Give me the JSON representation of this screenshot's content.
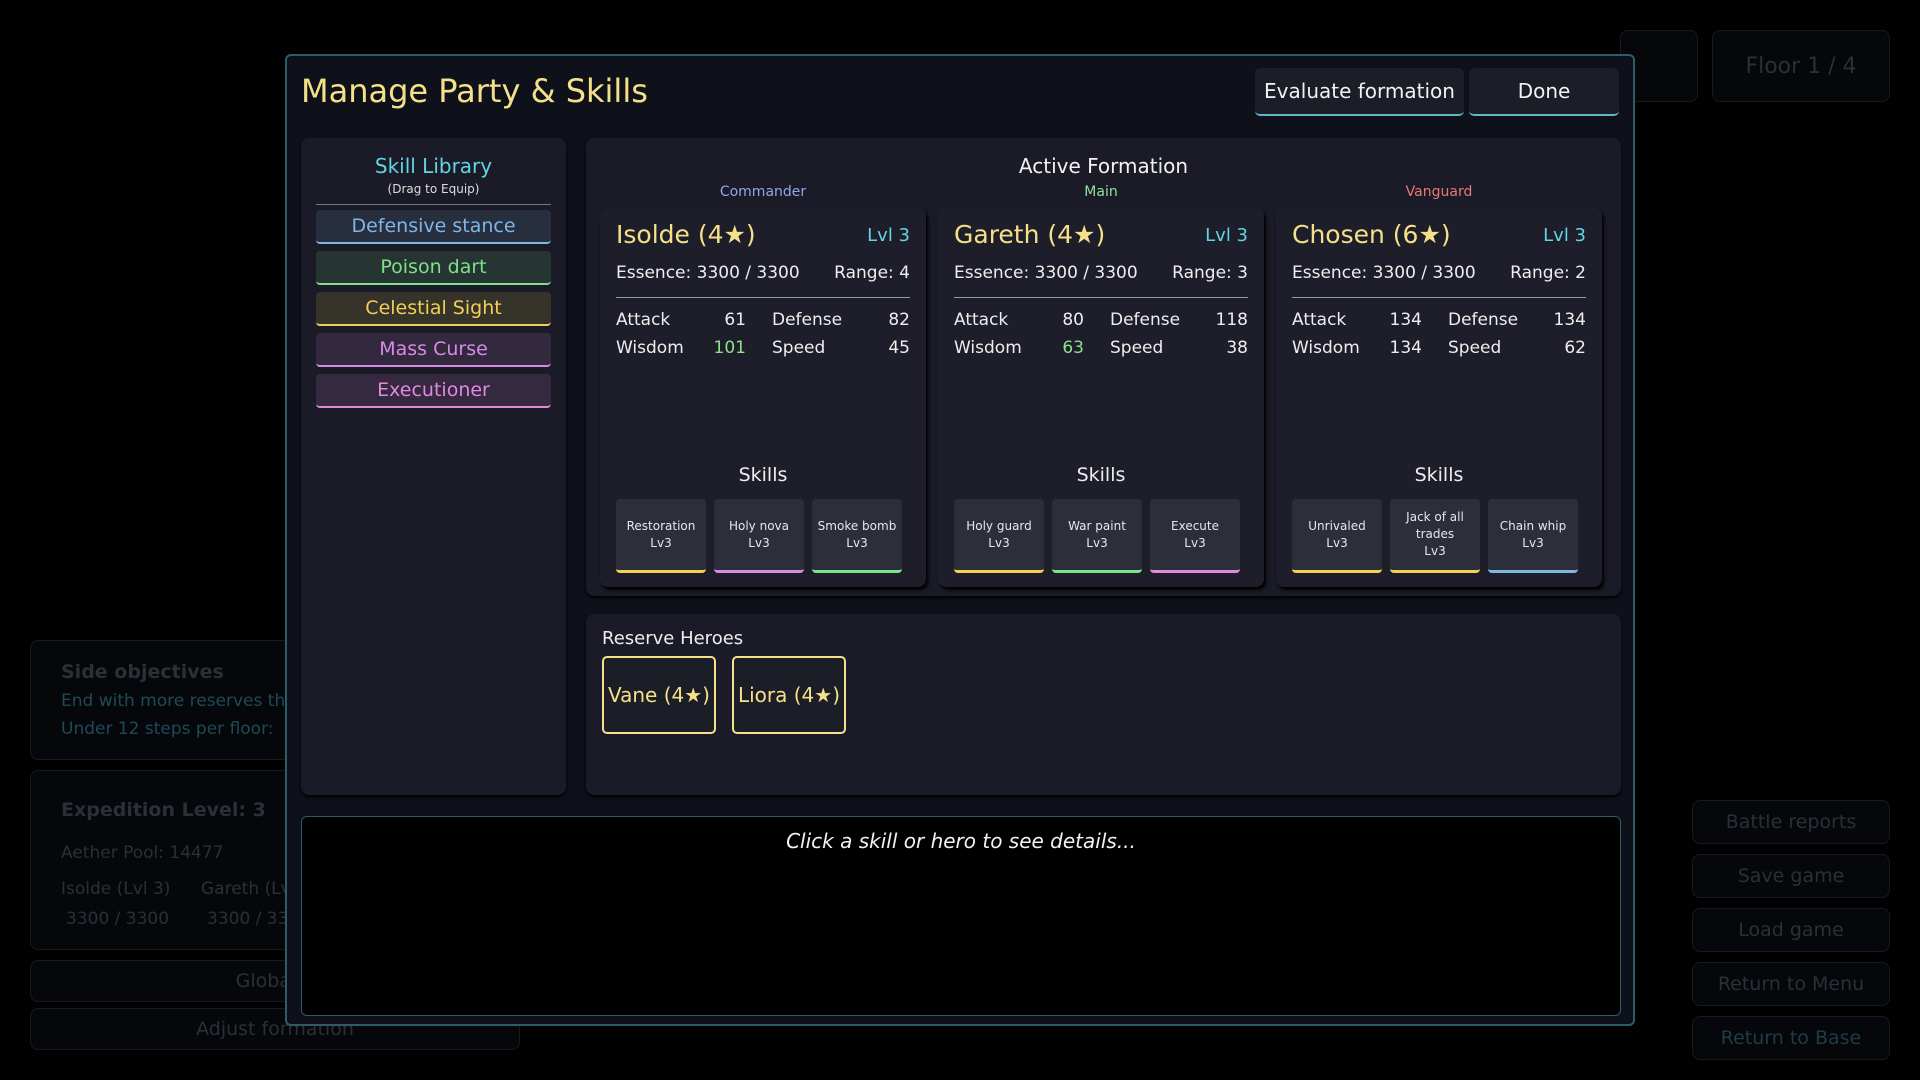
{
  "background": {
    "floor": "Floor 1 / 4",
    "side_objectives": {
      "title": "Side objectives",
      "lines": [
        "End with more reserves th",
        "Under 12 steps per floor:"
      ]
    },
    "expedition": {
      "level": "Expedition Level: 3",
      "aether": "Aether Pool: 14477",
      "heroes": [
        {
          "name": "Isolde (Lvl 3)",
          "essence": "3300 / 3300"
        },
        {
          "name": "Gareth (Lv",
          "essence": "3300 / 33"
        }
      ]
    },
    "buttons_left": [
      "Global b",
      "Adjust formation"
    ],
    "buttons_right": [
      "Battle reports",
      "Save game",
      "Load game",
      "Return to Menu",
      "Return to Base"
    ]
  },
  "modal": {
    "title": "Manage Party & Skills",
    "buttons": [
      "Evaluate formation",
      "Done"
    ],
    "skill_library": {
      "title": "Skill Library",
      "subtitle": "(Drag to Equip)",
      "skills": [
        {
          "name": "Defensive stance",
          "color": "#7fb6e6"
        },
        {
          "name": "Poison dart",
          "color": "#7ee08a"
        },
        {
          "name": "Celestial Sight",
          "color": "#f2cf55"
        },
        {
          "name": "Mass Curse",
          "color": "#d98ae6"
        },
        {
          "name": "Executioner",
          "color": "#e089e0"
        }
      ]
    },
    "active_formation": {
      "title": "Active Formation",
      "heroes": [
        {
          "role": "Commander",
          "role_color": "#8fa8e8",
          "name": "Isolde (4★)",
          "level": "Lvl 3",
          "essence": "Essence: 3300 / 3300",
          "range": "Range: 4",
          "stats": [
            {
              "label": "Attack",
              "value": 61
            },
            {
              "label": "Defense",
              "value": 82
            },
            {
              "label": "Wisdom",
              "value": 101,
              "color": "#8ee08a"
            },
            {
              "label": "Speed",
              "value": 45
            }
          ],
          "skills_title": "Skills",
          "skills": [
            {
              "name": "Restoration",
              "level": "Lv3",
              "color": "#f2cf55"
            },
            {
              "name": "Holy nova",
              "level": "Lv3",
              "color": "#d98ae6"
            },
            {
              "name": "Smoke bomb",
              "level": "Lv3",
              "color": "#7ee08a"
            }
          ]
        },
        {
          "role": "Main",
          "role_color": "#8ee0a0",
          "name": "Gareth (4★)",
          "level": "Lvl 3",
          "essence": "Essence: 3300 / 3300",
          "range": "Range: 3",
          "stats": [
            {
              "label": "Attack",
              "value": 80
            },
            {
              "label": "Defense",
              "value": 118
            },
            {
              "label": "Wisdom",
              "value": 63,
              "color": "#8ee08a"
            },
            {
              "label": "Speed",
              "value": 38
            }
          ],
          "skills_title": "Skills",
          "skills": [
            {
              "name": "Holy guard",
              "level": "Lv3",
              "color": "#f2cf55"
            },
            {
              "name": "War paint",
              "level": "Lv3",
              "color": "#7ee08a"
            },
            {
              "name": "Execute",
              "level": "Lv3",
              "color": "#e089e0"
            }
          ]
        },
        {
          "role": "Vanguard",
          "role_color": "#e87878",
          "name": "Chosen (6★)",
          "level": "Lvl 3",
          "essence": "Essence: 3300 / 3300",
          "range": "Range: 2",
          "stats": [
            {
              "label": "Attack",
              "value": 134
            },
            {
              "label": "Defense",
              "value": 134
            },
            {
              "label": "Wisdom",
              "value": 134
            },
            {
              "label": "Speed",
              "value": 62
            }
          ],
          "skills_title": "Skills",
          "skills": [
            {
              "name": "Unrivaled",
              "level": "Lv3",
              "color": "#f2cf55"
            },
            {
              "name": "Jack of all trades",
              "level": "Lv3",
              "color": "#f2cf55"
            },
            {
              "name": "Chain whip",
              "level": "Lv3",
              "color": "#7fb6e6"
            }
          ]
        }
      ]
    },
    "reserve": {
      "title": "Reserve Heroes",
      "heroes": [
        "Vane (4★)",
        "Liora (4★)"
      ]
    },
    "details": "Click a skill or hero to see details..."
  }
}
